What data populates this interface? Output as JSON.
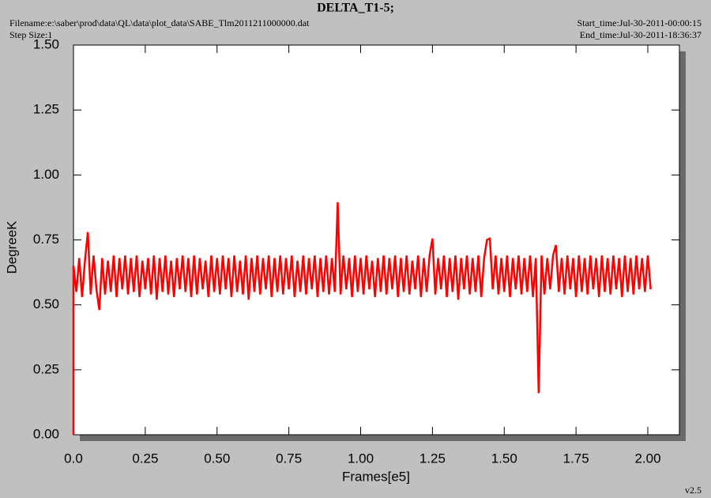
{
  "chart_data": {
    "type": "line",
    "title": "DELTA_T1-5;",
    "filename": "Filename:e:\\saber\\prod\\data\\QL\\data\\plot_data\\SABE_Tlm2011211000000.dat",
    "step_size": "Step Size:1",
    "start_time": "Start_time:Jul-30-2011-00:00:15",
    "end_time": "End_time:Jul-30-2011-18:36:37",
    "version": "v2.5",
    "x_label": "Frames[e5]",
    "y_label": "DegreeK",
    "xlim": [
      0,
      2.11
    ],
    "ylim": [
      0,
      1.5
    ],
    "xticks": [
      {
        "value": 0,
        "label": "0.0"
      },
      0.25,
      {
        "value": 0.5,
        "label": "0.50"
      },
      0.75,
      {
        "value": 1,
        "label": "1.00"
      },
      1.25,
      {
        "value": 1.5,
        "label": "1.50"
      },
      1.75,
      {
        "value": 2,
        "label": "2.00"
      }
    ],
    "yticks": [
      {
        "value": 0,
        "label": "0.00"
      },
      0.25,
      {
        "value": 0.5,
        "label": "0.50"
      },
      0.75,
      {
        "value": 1,
        "label": "1.00"
      },
      1.25,
      {
        "value": 1.5,
        "label": "1.50"
      }
    ],
    "x": [
      0,
      0,
      0.01,
      0.02,
      0.03,
      0.04,
      0.05,
      0.06,
      0.07,
      0.08,
      0.09,
      0.1,
      0.11,
      0.12,
      0.13,
      0.14,
      0.15,
      0.16,
      0.17,
      0.18,
      0.19,
      0.2,
      0.21,
      0.22,
      0.23,
      0.24,
      0.25,
      0.26,
      0.27,
      0.28,
      0.29,
      0.3,
      0.31,
      0.32,
      0.33,
      0.34,
      0.35,
      0.36,
      0.37,
      0.38,
      0.39,
      0.4,
      0.41,
      0.42,
      0.43,
      0.44,
      0.45,
      0.46,
      0.47,
      0.48,
      0.49,
      0.5,
      0.51,
      0.52,
      0.53,
      0.54,
      0.55,
      0.56,
      0.57,
      0.58,
      0.59,
      0.6,
      0.61,
      0.62,
      0.63,
      0.64,
      0.65,
      0.66,
      0.67,
      0.68,
      0.69,
      0.7,
      0.71,
      0.72,
      0.73,
      0.74,
      0.75,
      0.76,
      0.77,
      0.78,
      0.79,
      0.8,
      0.81,
      0.82,
      0.83,
      0.84,
      0.85,
      0.86,
      0.87,
      0.88,
      0.89,
      0.9,
      0.91,
      0.92,
      0.93,
      0.94,
      0.95,
      0.96,
      0.97,
      0.98,
      0.99,
      1,
      1.01,
      1.02,
      1.03,
      1.04,
      1.05,
      1.06,
      1.07,
      1.08,
      1.09,
      1.1,
      1.11,
      1.12,
      1.13,
      1.14,
      1.15,
      1.16,
      1.17,
      1.18,
      1.19,
      1.2,
      1.21,
      1.22,
      1.23,
      1.24,
      1.25,
      1.26,
      1.27,
      1.28,
      1.29,
      1.3,
      1.31,
      1.32,
      1.33,
      1.34,
      1.35,
      1.36,
      1.37,
      1.38,
      1.39,
      1.4,
      1.41,
      1.42,
      1.43,
      1.44,
      1.45,
      1.46,
      1.47,
      1.48,
      1.49,
      1.5,
      1.51,
      1.52,
      1.53,
      1.54,
      1.55,
      1.56,
      1.57,
      1.58,
      1.59,
      1.6,
      1.61,
      1.62,
      1.63,
      1.64,
      1.65,
      1.66,
      1.67,
      1.68,
      1.69,
      1.7,
      1.71,
      1.72,
      1.73,
      1.74,
      1.75,
      1.76,
      1.77,
      1.78,
      1.79,
      1.8,
      1.81,
      1.82,
      1.83,
      1.84,
      1.85,
      1.86,
      1.87,
      1.88,
      1.89,
      1.9,
      1.91,
      1.92,
      1.93,
      1.94,
      1.95,
      1.96,
      1.97,
      1.98,
      1.99,
      2,
      2.01
    ],
    "series": [
      {
        "color": "#ff0000",
        "values": [
          0,
          0.65,
          0.55,
          0.68,
          0.53,
          0.67,
          0.78,
          0.54,
          0.69,
          0.56,
          0.48,
          0.68,
          0.54,
          0.67,
          0.55,
          0.69,
          0.53,
          0.68,
          0.56,
          0.69,
          0.54,
          0.68,
          0.55,
          0.69,
          0.53,
          0.67,
          0.56,
          0.68,
          0.54,
          0.69,
          0.52,
          0.68,
          0.55,
          0.69,
          0.54,
          0.67,
          0.53,
          0.68,
          0.56,
          0.69,
          0.55,
          0.68,
          0.53,
          0.69,
          0.54,
          0.68,
          0.56,
          0.67,
          0.53,
          0.69,
          0.55,
          0.68,
          0.54,
          0.69,
          0.56,
          0.68,
          0.53,
          0.69,
          0.55,
          0.67,
          0.54,
          0.69,
          0.52,
          0.68,
          0.55,
          0.69,
          0.54,
          0.68,
          0.56,
          0.69,
          0.53,
          0.68,
          0.55,
          0.69,
          0.54,
          0.68,
          0.56,
          0.69,
          0.53,
          0.67,
          0.55,
          0.69,
          0.54,
          0.68,
          0.56,
          0.69,
          0.53,
          0.68,
          0.55,
          0.69,
          0.54,
          0.68,
          0.55,
          0.895,
          0.54,
          0.69,
          0.56,
          0.68,
          0.53,
          0.69,
          0.55,
          0.68,
          0.54,
          0.69,
          0.56,
          0.67,
          0.53,
          0.68,
          0.55,
          0.69,
          0.54,
          0.68,
          0.56,
          0.69,
          0.53,
          0.68,
          0.55,
          0.69,
          0.54,
          0.67,
          0.56,
          0.69,
          0.53,
          0.68,
          0.55,
          0.69,
          0.755,
          0.54,
          0.68,
          0.56,
          0.69,
          0.53,
          0.68,
          0.55,
          0.69,
          0.52,
          0.68,
          0.56,
          0.69,
          0.54,
          0.68,
          0.55,
          0.69,
          0.53,
          0.68,
          0.75,
          0.755,
          0.56,
          0.69,
          0.54,
          0.68,
          0.55,
          0.69,
          0.53,
          0.68,
          0.56,
          0.69,
          0.54,
          0.68,
          0.55,
          0.69,
          0.53,
          0.68,
          0.16,
          0.69,
          0.54,
          0.68,
          0.56,
          0.69,
          0.73,
          0.55,
          0.68,
          0.54,
          0.69,
          0.56,
          0.68,
          0.53,
          0.69,
          0.55,
          0.68,
          0.54,
          0.69,
          0.56,
          0.68,
          0.53,
          0.69,
          0.55,
          0.68,
          0.54,
          0.69,
          0.56,
          0.68,
          0.53,
          0.69,
          0.55,
          0.68,
          0.54,
          0.69,
          0.56,
          0.68,
          0.55,
          0.69,
          0.56
        ]
      }
    ]
  }
}
